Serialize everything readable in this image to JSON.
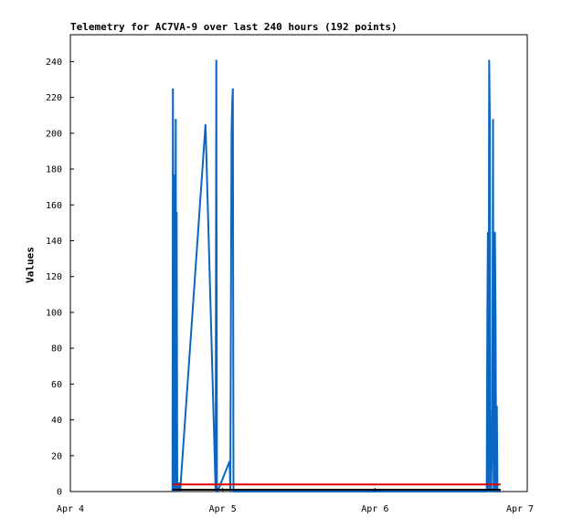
{
  "chart_data": {
    "type": "line",
    "title": "Telemetry for AC7VA-9 over last 240 hours (192 points)",
    "xlabel": "",
    "ylabel": "Values",
    "x_unit": "hours",
    "xlim": [
      0,
      72
    ],
    "ylim": [
      0,
      255
    ],
    "x_ticks": [
      {
        "value": 0,
        "label": "Apr 4"
      },
      {
        "value": 24,
        "label": "Apr 5"
      },
      {
        "value": 48,
        "label": "Apr 6"
      },
      {
        "value": 72,
        "label": "Apr 7"
      }
    ],
    "y_ticks": [
      0,
      20,
      40,
      60,
      80,
      100,
      120,
      140,
      160,
      180,
      200,
      220,
      240
    ],
    "grid": false,
    "series": [
      {
        "color": "#0a66c2",
        "x": [
          16.1,
          16.15,
          16.25,
          16.3,
          16.4,
          16.5,
          16.6,
          16.7,
          16.75,
          16.85,
          16.9,
          17.0,
          17.1,
          17.3,
          21.3,
          22.9,
          23.0,
          23.1,
          23.2,
          25.1,
          25.2,
          25.4,
          25.5,
          25.6,
          25.7,
          25.8,
          65.6,
          65.7,
          65.8,
          65.9,
          66.0,
          66.1,
          66.2,
          66.3,
          66.4,
          66.5,
          66.6,
          66.7,
          66.8,
          66.9,
          67.0,
          67.1,
          67.2,
          67.3,
          67.4,
          67.5,
          67.6,
          67.7,
          67.8
        ],
        "values": [
          0,
          225,
          128,
          0,
          177,
          0,
          208,
          0,
          156,
          0,
          5,
          0,
          5,
          0,
          205,
          0,
          241,
          0,
          0,
          17,
          0,
          200,
          217,
          225,
          0,
          0,
          0,
          97,
          145,
          0,
          241,
          208,
          0,
          0,
          17,
          48,
          208,
          0,
          0,
          145,
          97,
          0,
          48,
          0,
          0,
          0,
          0,
          0,
          0
        ]
      },
      {
        "color": "#dd0000",
        "x": [
          16.1,
          67.8
        ],
        "values": [
          4,
          4
        ]
      },
      {
        "color": "#000000",
        "x": [
          16.1,
          67.8
        ],
        "values": [
          1,
          1
        ]
      }
    ]
  }
}
